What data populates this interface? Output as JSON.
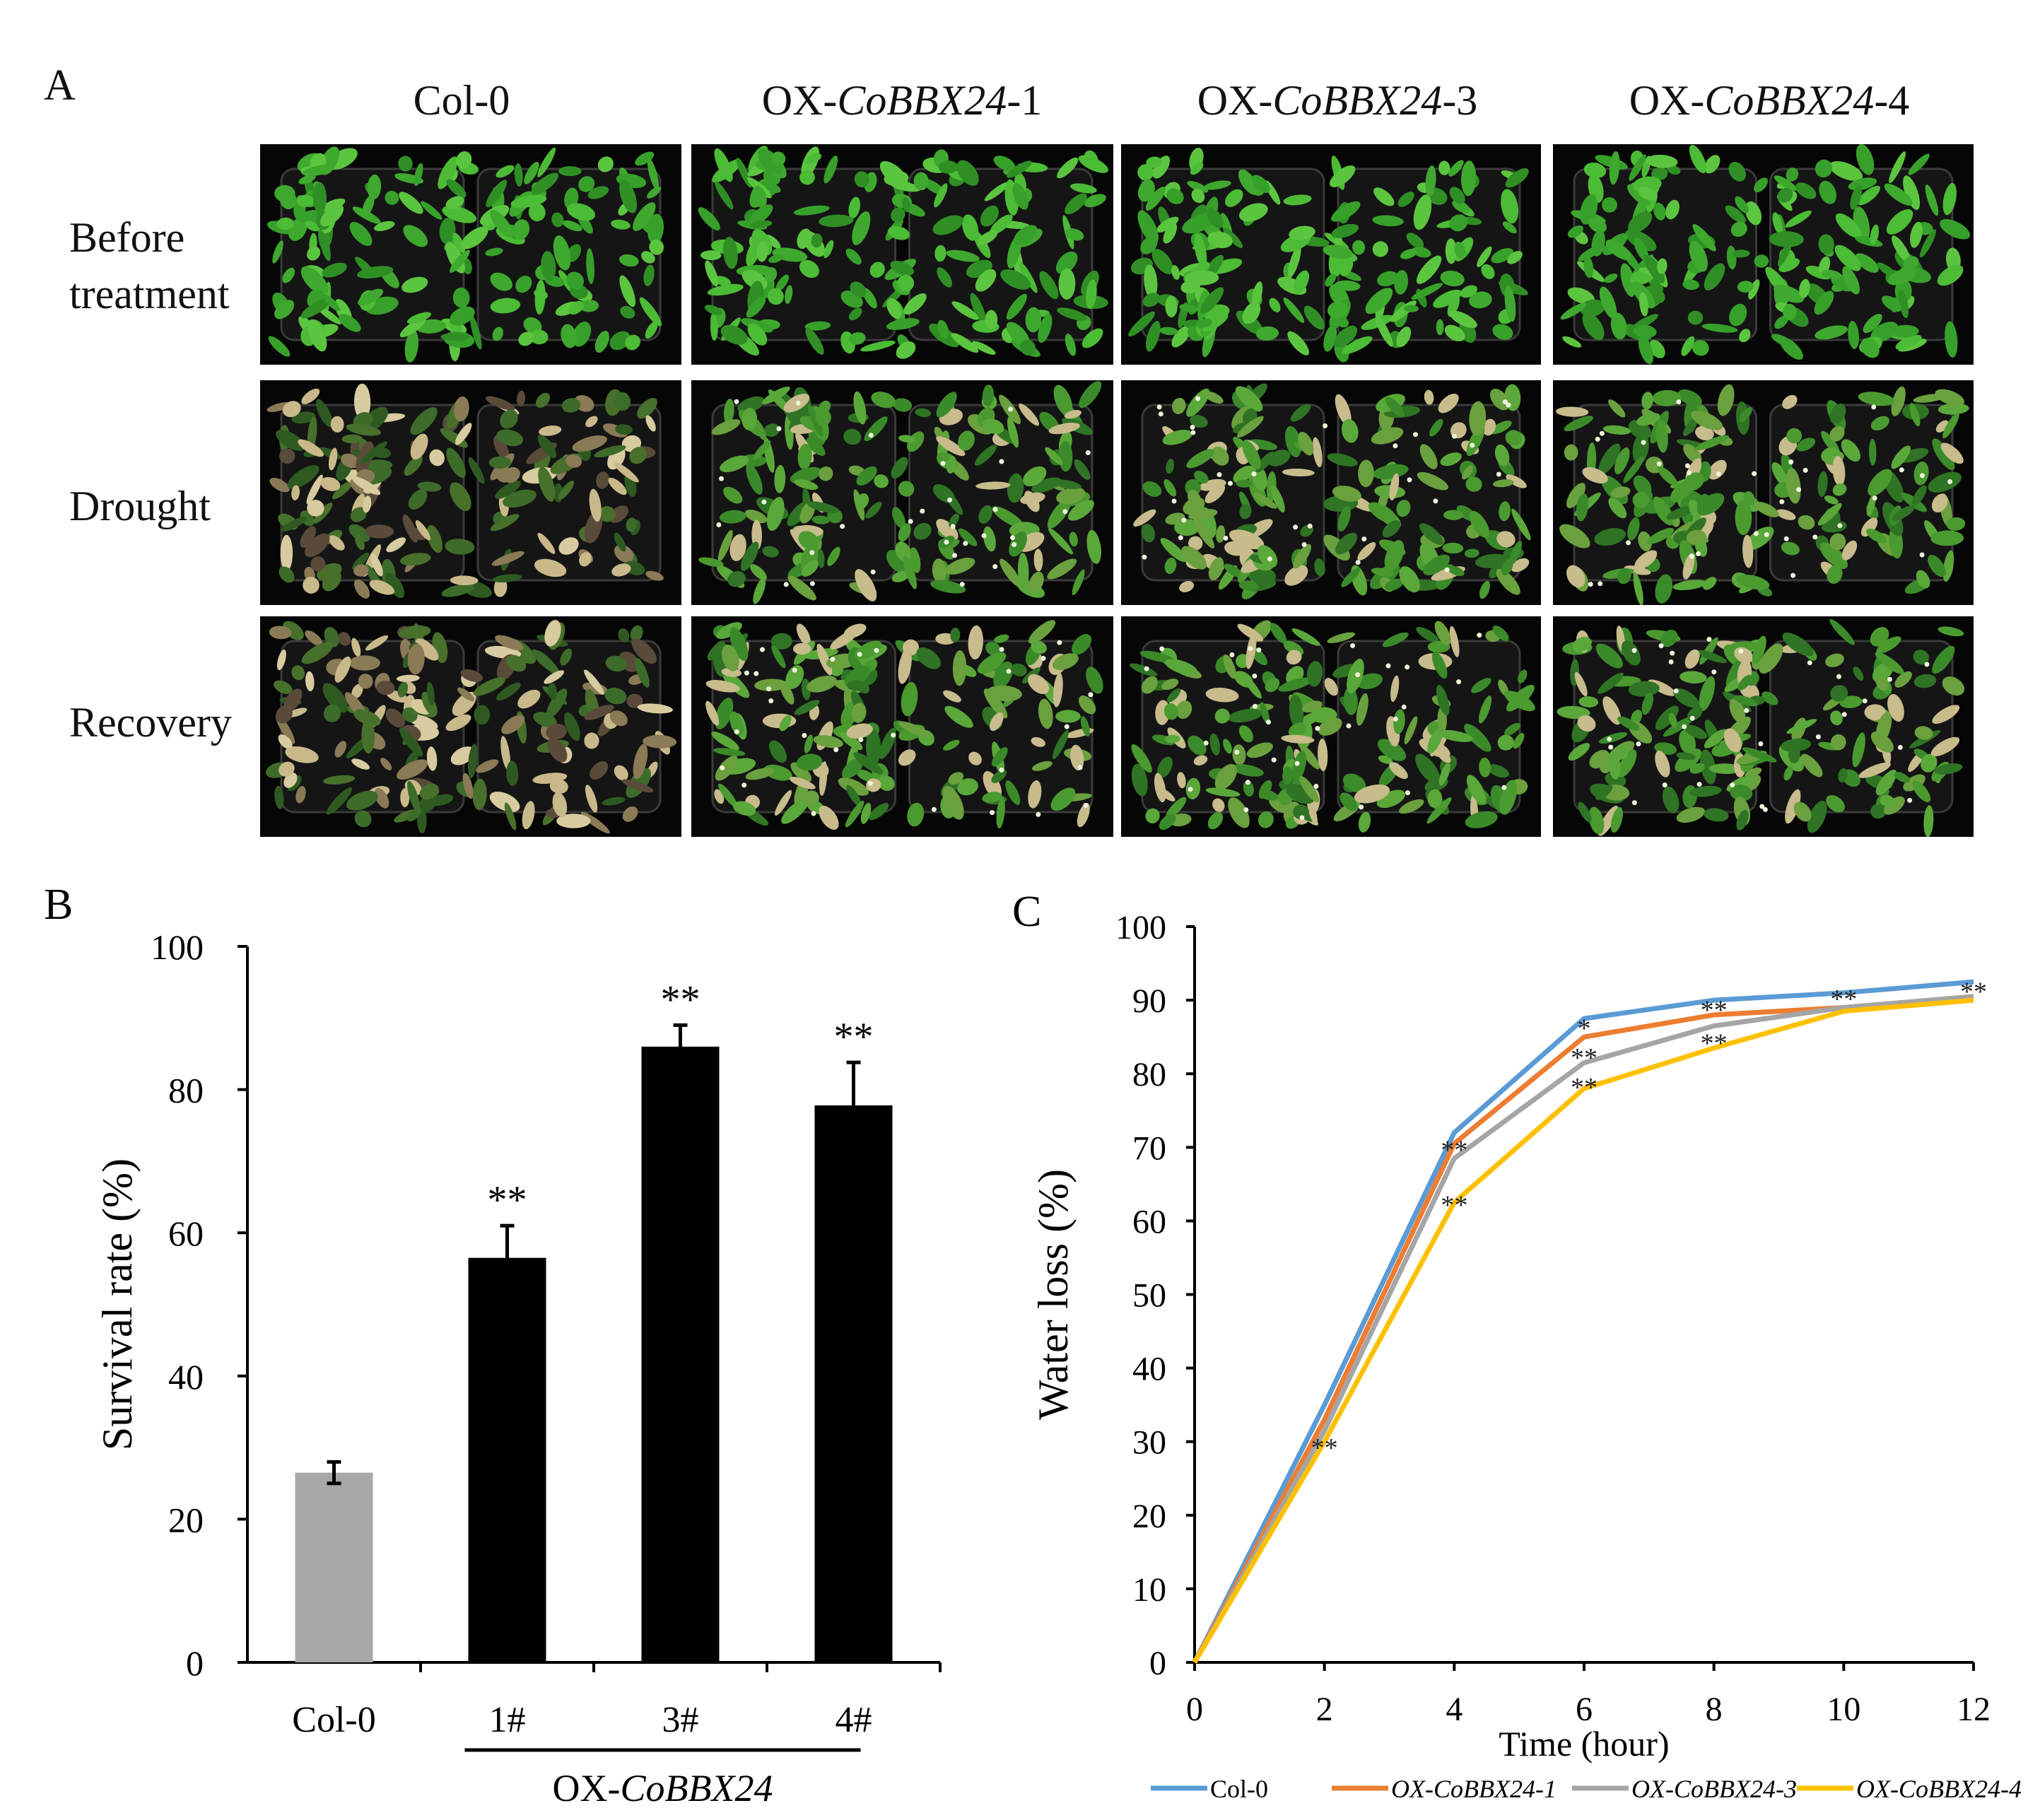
{
  "panel_a": {
    "letter": "A",
    "columns": [
      {
        "prefix": "Col-0",
        "gene": "",
        "suffix": ""
      },
      {
        "prefix": "OX-",
        "gene": "CoBBX24",
        "suffix": "-1"
      },
      {
        "prefix": "OX-",
        "gene": "CoBBX24",
        "suffix": "-3"
      },
      {
        "prefix": "OX-",
        "gene": "CoBBX24",
        "suffix": "-4"
      }
    ],
    "rows": [
      {
        "label_line1": "Before",
        "label_line2": "treatment",
        "condition": "healthy"
      },
      {
        "label_line1": "Drought",
        "label_line2": "",
        "condition": "drought"
      },
      {
        "label_line1": "Recovery",
        "label_line2": "",
        "condition": "recovery"
      }
    ]
  },
  "chart_data": [
    {
      "panel": "B",
      "type": "bar",
      "ylabel": "Survival rate (%)",
      "ylim": [
        0,
        100
      ],
      "yticks": [
        0,
        20,
        40,
        60,
        80,
        100
      ],
      "categories": [
        "Col-0",
        "1#",
        "3#",
        "4#"
      ],
      "values": [
        26.5,
        56.5,
        86.0,
        77.8
      ],
      "errors": [
        1.5,
        4.5,
        3.0,
        6.0
      ],
      "significance": [
        "",
        "**",
        "**",
        "**"
      ],
      "colors": [
        "#a8a8a8",
        "#000000",
        "#000000",
        "#000000"
      ],
      "group_label_prefix": "OX-",
      "group_label_gene": "CoBBX24"
    },
    {
      "panel": "C",
      "type": "line",
      "xlabel": "Time (hour)",
      "ylabel": "Water loss (%)",
      "x": [
        0,
        2,
        4,
        6,
        8,
        10,
        12
      ],
      "xlim": [
        0,
        12
      ],
      "ylim": [
        0,
        100
      ],
      "yticks": [
        0,
        10,
        20,
        30,
        40,
        50,
        60,
        70,
        80,
        90,
        100
      ],
      "series": [
        {
          "name": "Col-0",
          "values": [
            0,
            35,
            72,
            87.5,
            90,
            91,
            92.5
          ],
          "color": "#5b9bd5",
          "italic": false
        },
        {
          "name": "OX-CoBBX24-1",
          "values": [
            0,
            33,
            70.5,
            85,
            88,
            89,
            90.5
          ],
          "color": "#ed7d31",
          "italic": true
        },
        {
          "name": "OX-CoBBX24-3",
          "values": [
            0,
            31.5,
            68.5,
            81.5,
            86.5,
            89,
            90.5
          ],
          "color": "#a5a5a5",
          "italic": true
        },
        {
          "name": "OX-CoBBX24-4",
          "values": [
            0,
            30,
            62.5,
            78,
            83.5,
            88.5,
            90
          ],
          "color": "#ffc000",
          "italic": true
        }
      ],
      "annotations": [
        {
          "x": 2,
          "y": 29.5,
          "text": "**"
        },
        {
          "x": 4,
          "y": 70,
          "text": "**"
        },
        {
          "x": 4,
          "y": 62.5,
          "text": "**"
        },
        {
          "x": 6,
          "y": 86.5,
          "text": "*"
        },
        {
          "x": 6,
          "y": 82.5,
          "text": "**"
        },
        {
          "x": 6,
          "y": 78.5,
          "text": "**"
        },
        {
          "x": 8,
          "y": 89,
          "text": "**"
        },
        {
          "x": 8,
          "y": 84.5,
          "text": "**"
        },
        {
          "x": 10,
          "y": 90.5,
          "text": "**"
        },
        {
          "x": 12,
          "y": 91.5,
          "text": "**"
        }
      ],
      "legend_position": "bottom"
    }
  ]
}
